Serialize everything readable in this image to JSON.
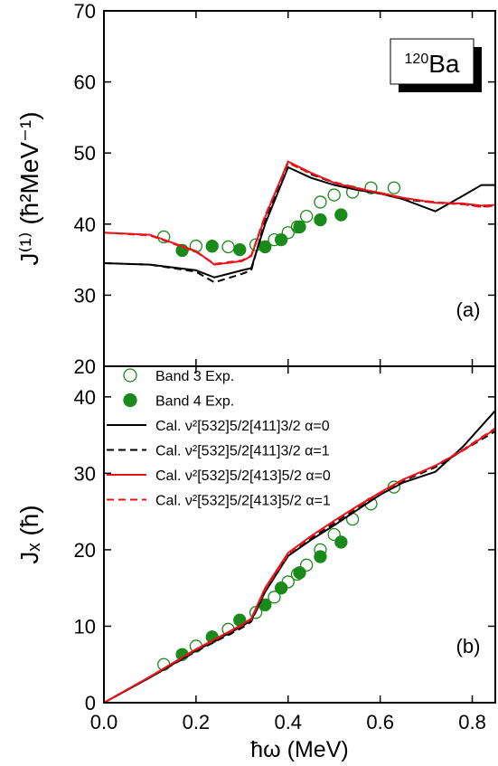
{
  "chart_data": [
    {
      "type": "line",
      "ylabel": "J⁽¹⁾ (ħ²MeV⁻¹)",
      "panel_label": "(a)",
      "nucleus": {
        "mass": "120",
        "symbol": "Ba"
      },
      "xlim": [
        0,
        0.85
      ],
      "ylim": [
        20,
        70
      ],
      "yticks": [
        20,
        30,
        40,
        50,
        60,
        70
      ],
      "series": [
        {
          "color": "#1a8a1a",
          "marker": "open",
          "x": [
            0.13,
            0.2,
            0.27,
            0.33,
            0.37,
            0.4,
            0.42,
            0.44,
            0.47,
            0.5,
            0.54,
            0.58,
            0.63
          ],
          "values": [
            38.2,
            36.9,
            36.8,
            37.1,
            37.8,
            38.8,
            39.6,
            41.1,
            43.1,
            44.1,
            44.5,
            45.1,
            45.1
          ]
        },
        {
          "color": "#1a8a1a",
          "marker": "filled",
          "x": [
            0.17,
            0.235,
            0.295,
            0.35,
            0.385,
            0.425,
            0.47,
            0.515
          ],
          "values": [
            36.3,
            36.9,
            36.4,
            36.8,
            37.8,
            39.6,
            40.6,
            41.3
          ]
        },
        {
          "color": "#000000",
          "style": "solid",
          "x": [
            0,
            0.1,
            0.2,
            0.24,
            0.3,
            0.32,
            0.35,
            0.4,
            0.45,
            0.5,
            0.55,
            0.6,
            0.65,
            0.72,
            0.78,
            0.82,
            0.85
          ],
          "values": [
            34.5,
            34.3,
            33.5,
            32.5,
            33.5,
            33.8,
            40,
            48,
            46.5,
            45.5,
            44.8,
            44.3,
            43.5,
            41.8,
            44,
            45.5,
            45.5
          ]
        },
        {
          "color": "#000000",
          "style": "dashed",
          "x": [
            0,
            0.1,
            0.2,
            0.24,
            0.3,
            0.32,
            0.35,
            0.4,
            0.45,
            0.5,
            0.55,
            0.6,
            0.65,
            0.72,
            0.78,
            0.82,
            0.85
          ],
          "values": [
            34.5,
            34.3,
            33.3,
            31.8,
            33,
            33.5,
            40.5,
            48.8,
            47,
            45.8,
            45,
            44.3,
            43.5,
            43,
            42.8,
            42.5,
            42.5
          ]
        },
        {
          "color": "#e8141a",
          "style": "solid",
          "x": [
            0,
            0.1,
            0.2,
            0.24,
            0.3,
            0.32,
            0.35,
            0.4,
            0.45,
            0.5,
            0.55,
            0.6,
            0.65,
            0.72,
            0.78,
            0.82,
            0.85
          ],
          "values": [
            38.8,
            38.5,
            36.2,
            34.3,
            34.8,
            35.5,
            41,
            48.8,
            47.2,
            45.8,
            45,
            44.4,
            43.7,
            43,
            42.9,
            42.6,
            42.7
          ]
        },
        {
          "color": "#e8141a",
          "style": "dashed",
          "x": [
            0,
            0.1,
            0.2,
            0.24,
            0.3,
            0.32,
            0.35,
            0.4,
            0.45,
            0.5,
            0.55,
            0.6,
            0.65,
            0.72,
            0.78,
            0.82,
            0.85
          ],
          "values": [
            38.8,
            38.4,
            36.1,
            34.4,
            34.9,
            35.6,
            41.2,
            48.6,
            47.1,
            45.9,
            45.1,
            44.3,
            43.6,
            43.1,
            42.8,
            42.4,
            42.6
          ]
        }
      ]
    },
    {
      "type": "line",
      "xlabel": "ħω (MeV)",
      "ylabel": "Jₓ (ħ)",
      "panel_label": "(b)",
      "xlim": [
        0,
        0.85
      ],
      "ylim": [
        0,
        44
      ],
      "xticks": [
        {
          "value": 0,
          "label": "0.0"
        },
        0.2,
        0.4,
        0.6,
        0.8
      ],
      "yticks": [
        0,
        10,
        20,
        30,
        40
      ],
      "series": [
        {
          "name": "Band 3 Exp.",
          "color": "#1a8a1a",
          "marker": "open",
          "x": [
            0.13,
            0.2,
            0.27,
            0.33,
            0.37,
            0.4,
            0.42,
            0.44,
            0.47,
            0.5,
            0.54,
            0.58,
            0.63
          ],
          "values": [
            5,
            7.4,
            9.6,
            11.8,
            13.8,
            15.8,
            16.8,
            18,
            20,
            22,
            24,
            26,
            28.2
          ]
        },
        {
          "name": "Band 4 Exp.",
          "color": "#1a8a1a",
          "marker": "filled",
          "x": [
            0.17,
            0.235,
            0.295,
            0.35,
            0.385,
            0.425,
            0.47,
            0.515
          ],
          "values": [
            6.3,
            8.6,
            10.8,
            12.8,
            15,
            17,
            19.1,
            21
          ]
        },
        {
          "name": "Cal. ν²[532]5/2[411]3/2 α=0",
          "color": "#000000",
          "style": "solid",
          "x": [
            0,
            0.1,
            0.2,
            0.3,
            0.32,
            0.35,
            0.4,
            0.45,
            0.5,
            0.55,
            0.6,
            0.65,
            0.72,
            0.78,
            0.85
          ],
          "values": [
            0,
            3.3,
            6.8,
            10,
            10.8,
            14.5,
            19.2,
            21.3,
            23.2,
            25.2,
            27.2,
            28.8,
            30.2,
            33.5,
            38.2
          ]
        },
        {
          "name": "Cal. ν²[532]5/2[411]3/2 α=1",
          "color": "#000000",
          "style": "dashed",
          "x": [
            0,
            0.1,
            0.2,
            0.3,
            0.32,
            0.35,
            0.4,
            0.45,
            0.5,
            0.55,
            0.6,
            0.65,
            0.72,
            0.78,
            0.85
          ],
          "values": [
            0,
            3.3,
            6.7,
            9.8,
            10.6,
            14.5,
            19.2,
            21.5,
            23.5,
            25.5,
            27.3,
            29,
            30.8,
            33,
            35.5
          ]
        },
        {
          "name": "Cal. ν²[532]5/2[413]5/2 α=0",
          "color": "#e8141a",
          "style": "solid",
          "x": [
            0,
            0.1,
            0.2,
            0.3,
            0.32,
            0.35,
            0.4,
            0.45,
            0.5,
            0.55,
            0.6,
            0.65,
            0.72,
            0.78,
            0.85
          ],
          "values": [
            0,
            3.4,
            7,
            10.2,
            11,
            15,
            19.6,
            21.8,
            23.8,
            25.7,
            27.5,
            29.2,
            31,
            33,
            35.8
          ]
        },
        {
          "name": "Cal. ν²[532]5/2[413]5/2 α=1",
          "color": "#e8141a",
          "style": "dashed",
          "x": [
            0,
            0.1,
            0.2,
            0.3,
            0.32,
            0.35,
            0.4,
            0.45,
            0.5,
            0.55,
            0.6,
            0.65,
            0.72,
            0.78,
            0.85
          ],
          "values": [
            0,
            3.4,
            6.9,
            10.1,
            10.9,
            14.8,
            19.4,
            21.7,
            23.7,
            25.6,
            27.4,
            29.1,
            31,
            33.1,
            35.9
          ]
        }
      ]
    }
  ]
}
